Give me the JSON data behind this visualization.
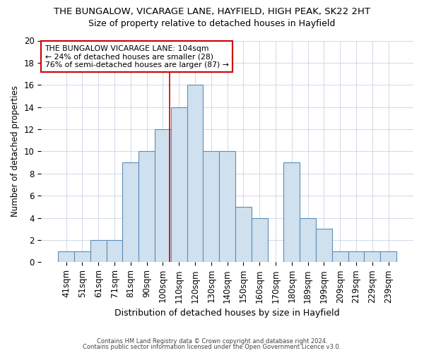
{
  "title": "THE BUNGALOW, VICARAGE LANE, HAYFIELD, HIGH PEAK, SK22 2HT",
  "subtitle": "Size of property relative to detached houses in Hayfield",
  "xlabel": "Distribution of detached houses by size in Hayfield",
  "ylabel": "Number of detached properties",
  "bar_color": "#cfe0ee",
  "bar_edge_color": "#5b8db8",
  "categories": [
    "41sqm",
    "51sqm",
    "61sqm",
    "71sqm",
    "81sqm",
    "90sqm",
    "100sqm",
    "110sqm",
    "120sqm",
    "130sqm",
    "140sqm",
    "150sqm",
    "160sqm",
    "170sqm",
    "180sqm",
    "189sqm",
    "199sqm",
    "209sqm",
    "219sqm",
    "229sqm",
    "239sqm"
  ],
  "values": [
    1,
    1,
    2,
    2,
    9,
    10,
    12,
    14,
    16,
    10,
    10,
    5,
    4,
    0,
    9,
    4,
    3,
    1,
    1,
    1,
    1
  ],
  "ylim": [
    0,
    20
  ],
  "yticks": [
    0,
    2,
    4,
    6,
    8,
    10,
    12,
    14,
    16,
    18,
    20
  ],
  "annotation_text": "THE BUNGALOW VICARAGE LANE: 104sqm\n← 24% of detached houses are smaller (28)\n76% of semi-detached houses are larger (87) →",
  "annotation_box_color": "#ffffff",
  "annotation_box_edge_color": "#cc0000",
  "vline_x_index": 6.4,
  "vline_color": "#cc0000",
  "footer_line1": "Contains HM Land Registry data © Crown copyright and database right 2024.",
  "footer_line2": "Contains public sector information licensed under the Open Government Licence v3.0.",
  "background_color": "#ffffff",
  "grid_color": "#d0d8e8",
  "title_fontsize": 9.5,
  "subtitle_fontsize": 9.0,
  "xlabel_fontsize": 9.0,
  "ylabel_fontsize": 8.5,
  "tick_fontsize": 8.5,
  "annotation_fontsize": 7.8,
  "footer_fontsize": 6.0
}
